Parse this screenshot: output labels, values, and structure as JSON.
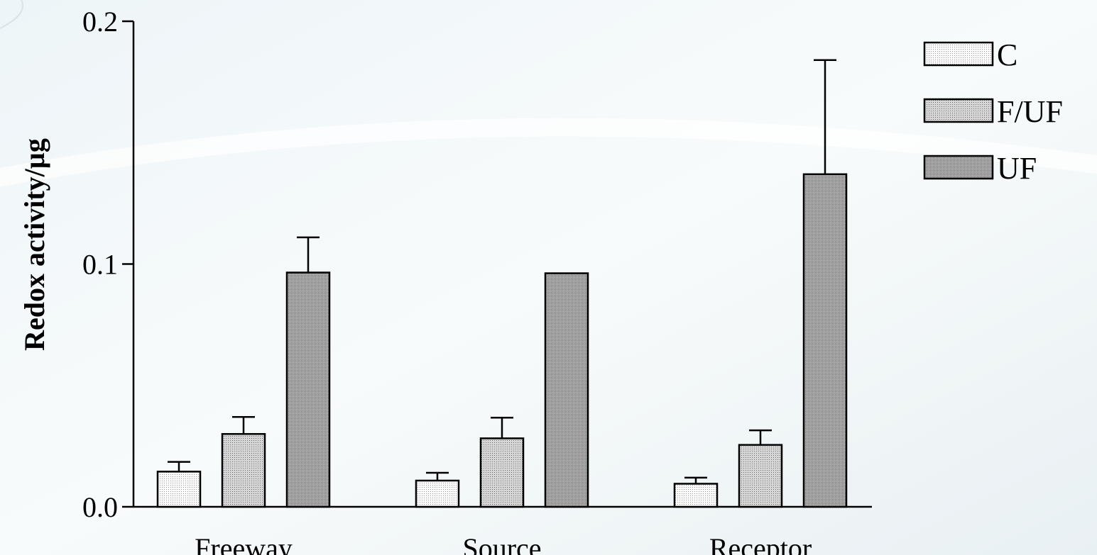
{
  "chart_data": {
    "type": "bar",
    "categories": [
      "Freeway",
      "Source",
      "Receptor"
    ],
    "series": [
      {
        "name": "C",
        "values": [
          0.0145,
          0.0108,
          0.0095
        ],
        "errors": [
          0.004,
          0.0032,
          0.0025
        ],
        "color": "#f4f4f4"
      },
      {
        "name": "F/UF",
        "values": [
          0.03,
          0.0282,
          0.0255
        ],
        "errors": [
          0.007,
          0.0085,
          0.006
        ],
        "color": "#cfcfcf"
      },
      {
        "name": "UF",
        "values": [
          0.0965,
          0.0962,
          0.137
        ],
        "errors": [
          0.0145,
          null,
          0.047
        ],
        "color": "#a9a9a9"
      }
    ],
    "title": "",
    "xlabel": "",
    "ylabel": "Redox activity/µg",
    "ylim": [
      0.0,
      0.2
    ],
    "yticks": [
      "0.0",
      "0.1",
      "0.2"
    ],
    "grid": false,
    "legend_position": "top-right"
  }
}
